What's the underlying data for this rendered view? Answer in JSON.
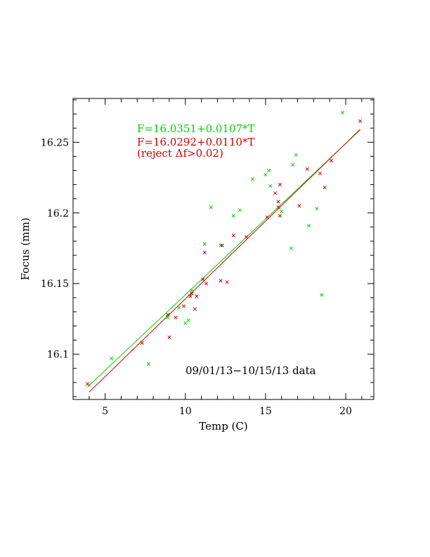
{
  "chart_data": {
    "type": "scatter",
    "xlabel": "Temp (C)",
    "ylabel": "Focus (mm)",
    "xlim": [
      3,
      21.75
    ],
    "ylim": [
      16.068,
      16.281
    ],
    "x_ticks": [
      5,
      10,
      15,
      20
    ],
    "y_ticks": [
      16.1,
      16.15,
      16.2,
      16.25
    ],
    "x_tick_labels": [
      "5",
      "10",
      "15",
      "20"
    ],
    "y_tick_labels": [
      "16.1",
      "16.15",
      "16.2",
      "16.25"
    ],
    "grid": false,
    "annotations": {
      "green_fit": "F=16.0351+0.0107*T",
      "red_fit": "F=16.0292+0.0110*T",
      "reject_note": "(reject Δf>0.02)",
      "date_range": "09/01/13−10/15/13 data"
    },
    "series": [
      {
        "color": "#00d000",
        "marker": "x",
        "points": [
          [
            4.0,
            16.078
          ],
          [
            5.4,
            16.097
          ],
          [
            7.3,
            16.108
          ],
          [
            7.7,
            16.093
          ],
          [
            8.9,
            16.126
          ],
          [
            9.6,
            16.133
          ],
          [
            10.0,
            16.122
          ],
          [
            10.2,
            16.124
          ],
          [
            10.4,
            16.145
          ],
          [
            11.2,
            16.178
          ],
          [
            11.6,
            16.204
          ],
          [
            12.2,
            16.177
          ],
          [
            13.0,
            16.198
          ],
          [
            13.4,
            16.202
          ],
          [
            13.8,
            16.183
          ],
          [
            14.2,
            16.224
          ],
          [
            15.0,
            16.227
          ],
          [
            15.2,
            16.23
          ],
          [
            15.3,
            16.219
          ],
          [
            16.0,
            16.201
          ],
          [
            16.6,
            16.175
          ],
          [
            16.7,
            16.234
          ],
          [
            16.9,
            16.241
          ],
          [
            17.7,
            16.191
          ],
          [
            18.2,
            16.203
          ],
          [
            18.5,
            16.142
          ],
          [
            19.8,
            16.271
          ]
        ]
      },
      {
        "color": "#d00000",
        "marker": "x",
        "points": [
          [
            3.9,
            16.079
          ],
          [
            7.3,
            16.108
          ],
          [
            8.9,
            16.128
          ],
          [
            9.0,
            16.112
          ],
          [
            9.4,
            16.126
          ],
          [
            9.9,
            16.134
          ],
          [
            10.3,
            16.141
          ],
          [
            10.4,
            16.143
          ],
          [
            10.6,
            16.132
          ],
          [
            10.7,
            16.141
          ],
          [
            11.1,
            16.153
          ],
          [
            11.2,
            16.172
          ],
          [
            11.3,
            16.15
          ],
          [
            12.2,
            16.152
          ],
          [
            12.3,
            16.177
          ],
          [
            12.6,
            16.151
          ],
          [
            13.0,
            16.184
          ],
          [
            13.8,
            16.183
          ],
          [
            15.1,
            16.197
          ],
          [
            15.6,
            16.214
          ],
          [
            15.8,
            16.204
          ],
          [
            15.8,
            16.208
          ],
          [
            15.9,
            16.198
          ],
          [
            15.9,
            16.22
          ],
          [
            17.1,
            16.205
          ],
          [
            17.6,
            16.231
          ],
          [
            18.4,
            16.228
          ],
          [
            18.7,
            16.218
          ],
          [
            19.1,
            16.237
          ],
          [
            20.9,
            16.265
          ]
        ]
      }
    ],
    "fits": [
      {
        "color": "#00d000",
        "intercept": 16.0351,
        "slope": 0.0107,
        "x_range": [
          4.0,
          20.9
        ]
      },
      {
        "color": "#d00000",
        "intercept": 16.0292,
        "slope": 0.011,
        "x_range": [
          4.0,
          20.9
        ]
      }
    ]
  }
}
